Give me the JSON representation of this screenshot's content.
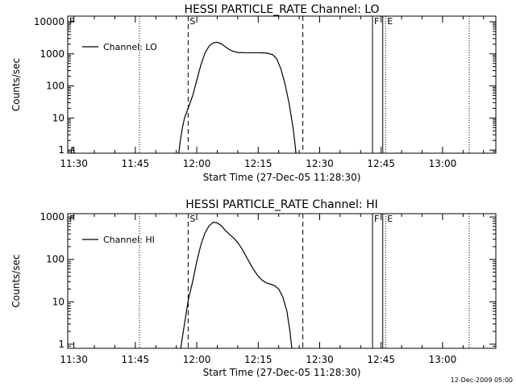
{
  "footer_timestamp": "12-Dec-2009 05:00",
  "chart_data": [
    {
      "type": "line",
      "title": "HESSI PARTICLE_RATE Channel: LO",
      "xlabel": "Start Time (27-Dec-05 11:28:30)",
      "ylabel": "Counts/sec",
      "y_scale": "log",
      "xlim": [
        "11:28:30",
        "13:13:00"
      ],
      "ylim": [
        0.8,
        15000
      ],
      "x_ticks": [
        "11:30",
        "11:45",
        "12:00",
        "12:15",
        "12:30",
        "12:45",
        "13:00"
      ],
      "y_ticks": [
        "1",
        "10",
        "100",
        "1000",
        "10000"
      ],
      "legend": {
        "label": "Channel: LO",
        "position": "top-left"
      },
      "series": [
        {
          "name": "Channel: LO",
          "points": [
            [
              "11:55:36",
              0.8
            ],
            [
              "11:56:00",
              2
            ],
            [
              "11:56:30",
              5
            ],
            [
              "11:57:00",
              10
            ],
            [
              "11:58:00",
              22
            ],
            [
              "11:59:00",
              50
            ],
            [
              "12:00:00",
              150
            ],
            [
              "12:01:00",
              450
            ],
            [
              "12:02:00",
              1050
            ],
            [
              "12:03:00",
              1750
            ],
            [
              "12:04:00",
              2200
            ],
            [
              "12:05:00",
              2300
            ],
            [
              "12:06:00",
              2050
            ],
            [
              "12:07:00",
              1650
            ],
            [
              "12:08:00",
              1350
            ],
            [
              "12:09:00",
              1180
            ],
            [
              "12:10:00",
              1100
            ],
            [
              "12:12:00",
              1080
            ],
            [
              "12:15:00",
              1080
            ],
            [
              "12:17:00",
              1060
            ],
            [
              "12:18:30",
              950
            ],
            [
              "12:19:30",
              700
            ],
            [
              "12:20:30",
              350
            ],
            [
              "12:21:30",
              120
            ],
            [
              "12:22:30",
              30
            ],
            [
              "12:23:30",
              5
            ],
            [
              "12:24:00",
              1.5
            ],
            [
              "12:24:12",
              0.8
            ]
          ]
        },
        {
          "name": "",
          "points": [
            [
              "11:29:24",
              0.8
            ],
            [
              "11:29:30",
              1.2
            ],
            [
              "11:29:54",
              1.2
            ],
            [
              "11:30:06",
              0.8
            ]
          ]
        }
      ],
      "markers": [
        {
          "time": "11:46:00",
          "style": "dotted",
          "label": ""
        },
        {
          "time": "11:57:54",
          "style": "dashed",
          "label": "S"
        },
        {
          "time": "12:25:54",
          "style": "dashed",
          "label": ""
        },
        {
          "time": "12:42:54",
          "style": "solid",
          "label": "F"
        },
        {
          "time": "12:45:24",
          "style": "solid",
          "label": ""
        },
        {
          "time": "12:46:06",
          "style": "dotted",
          "label": "E"
        },
        {
          "time": "13:06:30",
          "style": "dotted",
          "label": ""
        }
      ],
      "corner_label": "F"
    },
    {
      "type": "line",
      "title": "HESSI PARTICLE_RATE Channel: HI",
      "xlabel": "Start Time (27-Dec-05 11:28:30)",
      "ylabel": "Counts/sec",
      "y_scale": "log",
      "xlim": [
        "11:28:30",
        "13:13:00"
      ],
      "ylim": [
        0.8,
        1200
      ],
      "x_ticks": [
        "11:30",
        "11:45",
        "12:00",
        "12:15",
        "12:30",
        "12:45",
        "13:00"
      ],
      "y_ticks": [
        "1",
        "10",
        "100",
        "1000"
      ],
      "legend": {
        "label": "Channel: HI",
        "position": "top-left"
      },
      "series": [
        {
          "name": "Channel: HI",
          "points": [
            [
              "11:56:06",
              0.8
            ],
            [
              "11:56:30",
              1.5
            ],
            [
              "11:57:00",
              3
            ],
            [
              "11:57:30",
              6
            ],
            [
              "11:58:00",
              12
            ],
            [
              "11:59:00",
              30
            ],
            [
              "12:00:00",
              90
            ],
            [
              "12:01:00",
              220
            ],
            [
              "12:02:00",
              420
            ],
            [
              "12:03:00",
              620
            ],
            [
              "12:04:00",
              750
            ],
            [
              "12:05:00",
              730
            ],
            [
              "12:06:00",
              620
            ],
            [
              "12:07:00",
              480
            ],
            [
              "12:08:00",
              390
            ],
            [
              "12:09:00",
              320
            ],
            [
              "12:10:00",
              250
            ],
            [
              "12:11:00",
              180
            ],
            [
              "12:12:00",
              120
            ],
            [
              "12:13:00",
              80
            ],
            [
              "12:14:00",
              55
            ],
            [
              "12:15:00",
              40
            ],
            [
              "12:16:00",
              32
            ],
            [
              "12:17:00",
              28
            ],
            [
              "12:18:00",
              26
            ],
            [
              "12:19:00",
              24
            ],
            [
              "12:20:00",
              20
            ],
            [
              "12:21:00",
              13
            ],
            [
              "12:22:00",
              6
            ],
            [
              "12:22:45",
              2
            ],
            [
              "12:23:12",
              0.8
            ]
          ]
        }
      ],
      "markers": [
        {
          "time": "11:46:00",
          "style": "dotted",
          "label": ""
        },
        {
          "time": "11:57:54",
          "style": "dashed",
          "label": "S"
        },
        {
          "time": "12:25:54",
          "style": "dashed",
          "label": ""
        },
        {
          "time": "12:42:54",
          "style": "solid",
          "label": "F"
        },
        {
          "time": "12:45:24",
          "style": "solid",
          "label": ""
        },
        {
          "time": "12:46:06",
          "style": "dotted",
          "label": "E"
        },
        {
          "time": "13:06:30",
          "style": "dotted",
          "label": ""
        }
      ],
      "corner_label": "F"
    }
  ]
}
